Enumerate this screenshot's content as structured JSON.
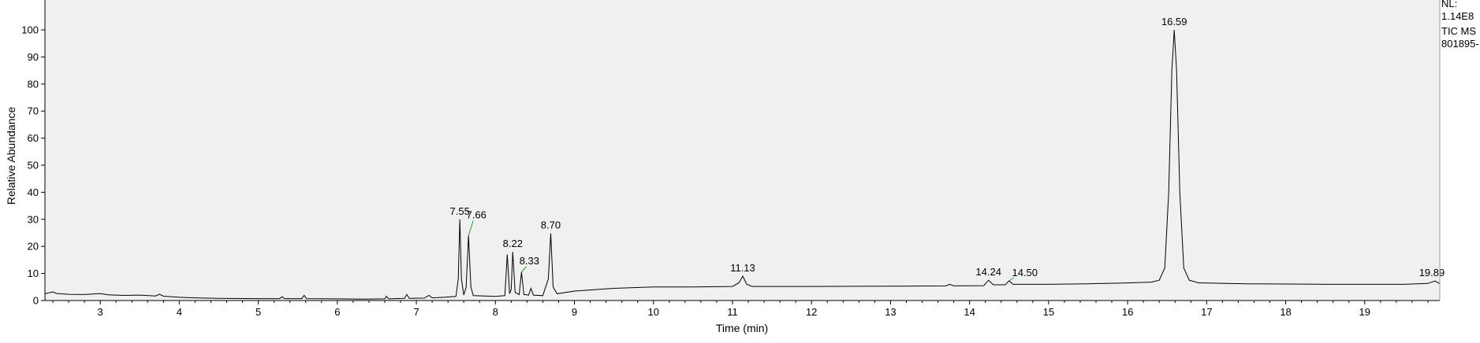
{
  "chart_data": {
    "type": "line",
    "title": "",
    "xlabel": "Time (min)",
    "ylabel": "Relative Abundance",
    "xlim": [
      2.3,
      19.95
    ],
    "ylim": [
      0,
      100
    ],
    "x_ticks": [
      3,
      4,
      5,
      6,
      7,
      8,
      9,
      10,
      11,
      12,
      13,
      14,
      15,
      16,
      17,
      18,
      19
    ],
    "y_ticks": [
      0,
      10,
      20,
      30,
      40,
      50,
      60,
      70,
      80,
      90,
      100
    ],
    "grid": false,
    "background": "#f0f0f0",
    "line_color": "#000000",
    "label_line_color": "#2e9e3a",
    "series": [
      {
        "values": [
          [
            2.3,
            2.5
          ],
          [
            2.4,
            3.2
          ],
          [
            2.45,
            2.6
          ],
          [
            2.6,
            2.3
          ],
          [
            2.8,
            2.2
          ],
          [
            3.0,
            2.6
          ],
          [
            3.1,
            2.1
          ],
          [
            3.3,
            1.9
          ],
          [
            3.5,
            2.0
          ],
          [
            3.7,
            1.7
          ],
          [
            3.75,
            2.3
          ],
          [
            3.8,
            1.6
          ],
          [
            4.0,
            1.2
          ],
          [
            4.2,
            1.0
          ],
          [
            4.5,
            0.8
          ],
          [
            5.0,
            0.7
          ],
          [
            5.27,
            0.7
          ],
          [
            5.3,
            1.4
          ],
          [
            5.33,
            0.7
          ],
          [
            5.55,
            0.7
          ],
          [
            5.58,
            1.9
          ],
          [
            5.61,
            0.7
          ],
          [
            6.0,
            0.6
          ],
          [
            6.3,
            0.5
          ],
          [
            6.6,
            0.6
          ],
          [
            6.62,
            1.6
          ],
          [
            6.65,
            0.6
          ],
          [
            6.85,
            0.8
          ],
          [
            6.88,
            2.2
          ],
          [
            6.91,
            0.8
          ],
          [
            7.1,
            0.9
          ],
          [
            7.16,
            1.9
          ],
          [
            7.2,
            1.0
          ],
          [
            7.35,
            1.2
          ],
          [
            7.5,
            1.5
          ],
          [
            7.53,
            8.0
          ],
          [
            7.55,
            30.0
          ],
          [
            7.57,
            8.0
          ],
          [
            7.6,
            2.0
          ],
          [
            7.63,
            5.0
          ],
          [
            7.66,
            24.0
          ],
          [
            7.69,
            5.0
          ],
          [
            7.72,
            1.8
          ],
          [
            8.0,
            1.5
          ],
          [
            8.12,
            1.8
          ],
          [
            8.15,
            17.0
          ],
          [
            8.18,
            2.5
          ],
          [
            8.2,
            4.0
          ],
          [
            8.22,
            18.0
          ],
          [
            8.25,
            3.0
          ],
          [
            8.3,
            2.2
          ],
          [
            8.33,
            10.5
          ],
          [
            8.36,
            2.2
          ],
          [
            8.42,
            2.0
          ],
          [
            8.45,
            4.5
          ],
          [
            8.48,
            2.0
          ],
          [
            8.6,
            1.8
          ],
          [
            8.67,
            8.0
          ],
          [
            8.7,
            24.8
          ],
          [
            8.73,
            5.0
          ],
          [
            8.78,
            2.5
          ],
          [
            9.0,
            3.5
          ],
          [
            9.5,
            4.5
          ],
          [
            10.0,
            5.0
          ],
          [
            10.5,
            5.0
          ],
          [
            11.0,
            5.2
          ],
          [
            11.08,
            6.5
          ],
          [
            11.13,
            9.0
          ],
          [
            11.18,
            6.0
          ],
          [
            11.25,
            5.2
          ],
          [
            12.0,
            5.2
          ],
          [
            13.0,
            5.3
          ],
          [
            13.7,
            5.4
          ],
          [
            13.75,
            6.0
          ],
          [
            13.8,
            5.4
          ],
          [
            14.18,
            5.5
          ],
          [
            14.24,
            7.5
          ],
          [
            14.3,
            5.8
          ],
          [
            14.45,
            5.8
          ],
          [
            14.5,
            7.3
          ],
          [
            14.55,
            6.0
          ],
          [
            15.0,
            6.0
          ],
          [
            15.5,
            6.2
          ],
          [
            16.0,
            6.5
          ],
          [
            16.3,
            6.8
          ],
          [
            16.4,
            7.5
          ],
          [
            16.47,
            12.0
          ],
          [
            16.52,
            40.0
          ],
          [
            16.56,
            85.0
          ],
          [
            16.59,
            100.0
          ],
          [
            16.62,
            85.0
          ],
          [
            16.66,
            40.0
          ],
          [
            16.71,
            12.0
          ],
          [
            16.78,
            7.5
          ],
          [
            16.9,
            6.5
          ],
          [
            17.5,
            6.2
          ],
          [
            18.0,
            6.1
          ],
          [
            18.5,
            6.0
          ],
          [
            19.0,
            6.0
          ],
          [
            19.5,
            6.0
          ],
          [
            19.8,
            6.3
          ],
          [
            19.89,
            7.2
          ],
          [
            19.95,
            6.2
          ]
        ]
      }
    ],
    "peak_labels": [
      {
        "label": "7.55",
        "x": 7.55,
        "y": 30.0
      },
      {
        "label": "7.66",
        "x": 7.66,
        "y": 24.0
      },
      {
        "label": "8.22",
        "x": 8.22,
        "y": 18.0
      },
      {
        "label": "8.33",
        "x": 8.33,
        "y": 10.5
      },
      {
        "label": "8.70",
        "x": 8.7,
        "y": 24.8
      },
      {
        "label": "11.13",
        "x": 11.13,
        "y": 9.0
      },
      {
        "label": "14.24",
        "x": 14.24,
        "y": 7.5
      },
      {
        "label": "14.50",
        "x": 14.5,
        "y": 7.3
      },
      {
        "label": "16.59",
        "x": 16.59,
        "y": 100.0
      },
      {
        "label": "19.89",
        "x": 19.89,
        "y": 7.2
      }
    ],
    "annotation": {
      "nl_label": "NL:",
      "nl_value": "1.14E8",
      "scan_filter": "TIC  MS",
      "file_name": "801895-"
    }
  }
}
